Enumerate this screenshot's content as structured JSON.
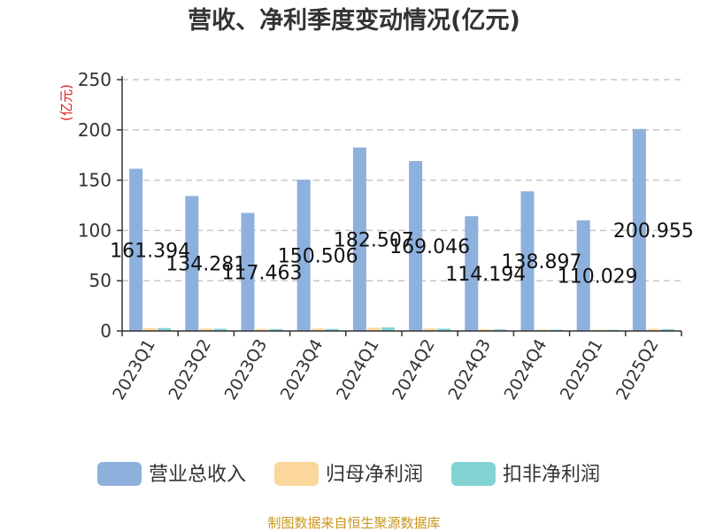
{
  "chart_data": {
    "type": "bar",
    "title": "营收、净利季度变动情况(亿元)",
    "unit_label": "(亿元)",
    "categories": [
      "2023Q1",
      "2023Q2",
      "2023Q3",
      "2023Q4",
      "2024Q1",
      "2024Q2",
      "2024Q3",
      "2024Q4",
      "2025Q1",
      "2025Q2"
    ],
    "series": [
      {
        "name": "营业总收入",
        "color": "#8eb0dd",
        "values": [
          161.394,
          134.281,
          117.463,
          150.506,
          182.507,
          169.046,
          114.194,
          138.897,
          110.029,
          200.955
        ]
      },
      {
        "name": "归母净利润",
        "color": "#fbd79c",
        "values": [
          2.8,
          2.3,
          2.0,
          2.4,
          3.2,
          2.5,
          1.8,
          1.5,
          1.4,
          2.1
        ]
      },
      {
        "name": "扣非净利润",
        "color": "#83d3d5",
        "values": [
          2.9,
          2.2,
          1.9,
          2.0,
          3.6,
          2.3,
          1.6,
          1.3,
          1.2,
          1.9
        ]
      }
    ],
    "data_labels": [
      "161.394",
      "134.281",
      "117.463",
      "150.506",
      "182.507",
      "169.046",
      "114.194",
      "138.897",
      "110.029",
      "200.955"
    ],
    "yticks": [
      "0",
      "50",
      "100",
      "150",
      "200",
      "250"
    ],
    "ylim": [
      0,
      250
    ],
    "grid": "dashed horizontal",
    "legend_position": "bottom"
  },
  "source_text": "制图数据来自恒生聚源数据库"
}
